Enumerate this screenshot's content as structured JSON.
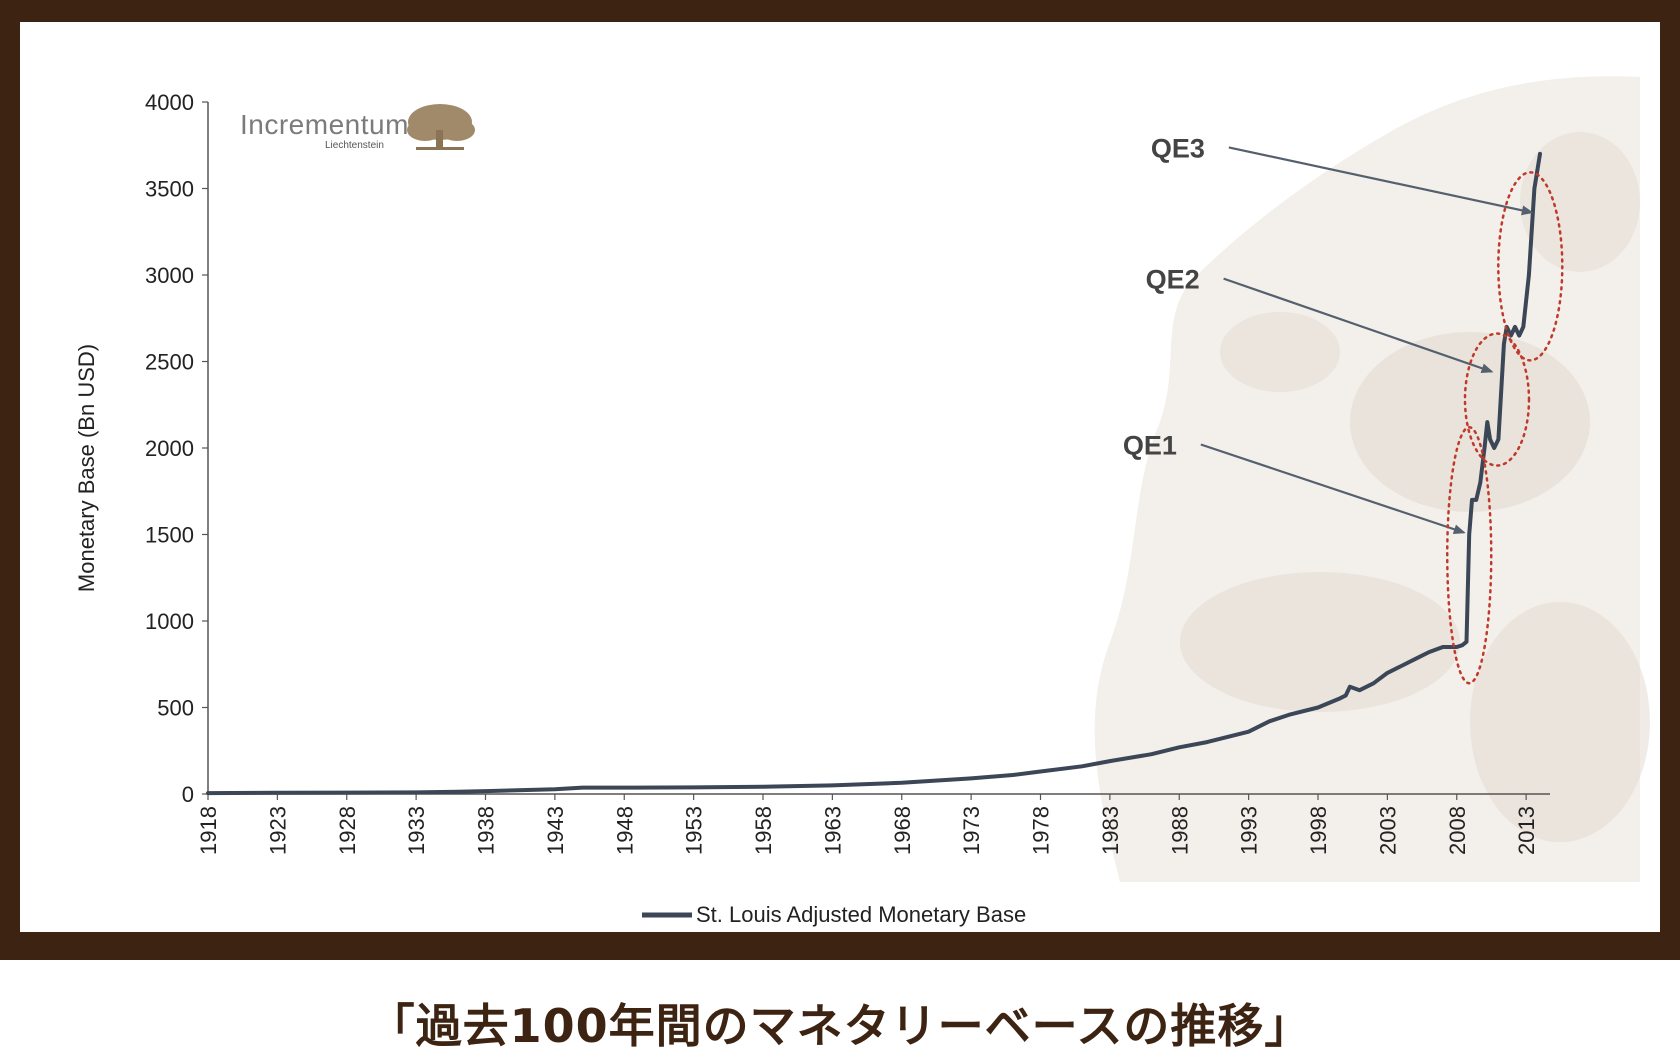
{
  "chart_data": {
    "type": "line",
    "ylabel": "Monetary Base (Bn USD)",
    "ylim": [
      0,
      4000
    ],
    "yticks": [
      "0",
      "500",
      "1000",
      "1500",
      "2000",
      "2500",
      "3000",
      "3500",
      "4000"
    ],
    "xlim": [
      1918,
      2014
    ],
    "xticks": [
      "1918",
      "1923",
      "1928",
      "1933",
      "1938",
      "1943",
      "1948",
      "1953",
      "1958",
      "1963",
      "1968",
      "1973",
      "1978",
      "1983",
      "1988",
      "1993",
      "1998",
      "2003",
      "2008",
      "2013"
    ],
    "grid": false,
    "legend_position": "bottom-center",
    "series": [
      {
        "name": "St. Louis Adjusted Monetary Base",
        "color": "#3b4656",
        "x": [
          1918,
          1923,
          1928,
          1933,
          1936,
          1938,
          1941,
          1943,
          1945,
          1948,
          1953,
          1958,
          1963,
          1968,
          1973,
          1976,
          1978,
          1981,
          1983,
          1986,
          1988,
          1990,
          1993,
          1994.5,
          1996,
          1998,
          1999.5,
          2000,
          2000.3,
          2001,
          2002,
          2003,
          2004,
          2005,
          2006,
          2007,
          2008,
          2008.4,
          2008.7,
          2008.9,
          2009.1,
          2009.4,
          2009.7,
          2010,
          2010.2,
          2010.4,
          2010.7,
          2011,
          2011.4,
          2011.6,
          2011.9,
          2012.2,
          2012.5,
          2012.8,
          2013.2,
          2013.6,
          2014
        ],
        "values": [
          5,
          7,
          8,
          9,
          13,
          17,
          23,
          28,
          37,
          37,
          38,
          42,
          50,
          65,
          90,
          110,
          130,
          160,
          190,
          230,
          270,
          300,
          360,
          420,
          460,
          500,
          550,
          570,
          620,
          600,
          640,
          700,
          740,
          780,
          820,
          850,
          850,
          860,
          880,
          1500,
          1700,
          1700,
          1800,
          2000,
          2150,
          2050,
          2000,
          2050,
          2600,
          2700,
          2650,
          2700,
          2650,
          2700,
          3000,
          3500,
          3700
        ]
      }
    ],
    "annotations": [
      {
        "label": "QE1",
        "x": 2008.8,
        "y": 1500
      },
      {
        "label": "QE2",
        "x": 2010.8,
        "y": 2430
      },
      {
        "label": "QE3",
        "x": 2013.7,
        "y": 3350
      }
    ]
  },
  "logo": {
    "name": "Incrementum",
    "subtitle": "Liechtenstein"
  },
  "caption": "「過去100年間のマネタリーベースの推移」"
}
